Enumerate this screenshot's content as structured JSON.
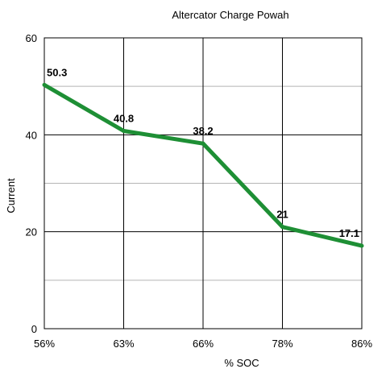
{
  "chart_data": {
    "type": "line",
    "title": "Altercator Charge Powah",
    "xlabel": "% SOC",
    "ylabel": "Current",
    "categories": [
      "56%",
      "63%",
      "66%",
      "78%",
      "86%"
    ],
    "series": [
      {
        "values": [
          50.3,
          40.8,
          38.2,
          21,
          17.1
        ],
        "data_labels": [
          "50.3",
          "40.8",
          "38.2",
          "21",
          "17.1"
        ],
        "color": "#1e8f35"
      }
    ],
    "ylim": [
      0,
      60
    ],
    "y_ticks": [
      "0",
      "20",
      "40",
      "60"
    ],
    "y_major_step": 20,
    "y_minor_step": 10,
    "grid": true,
    "legend": "none"
  }
}
